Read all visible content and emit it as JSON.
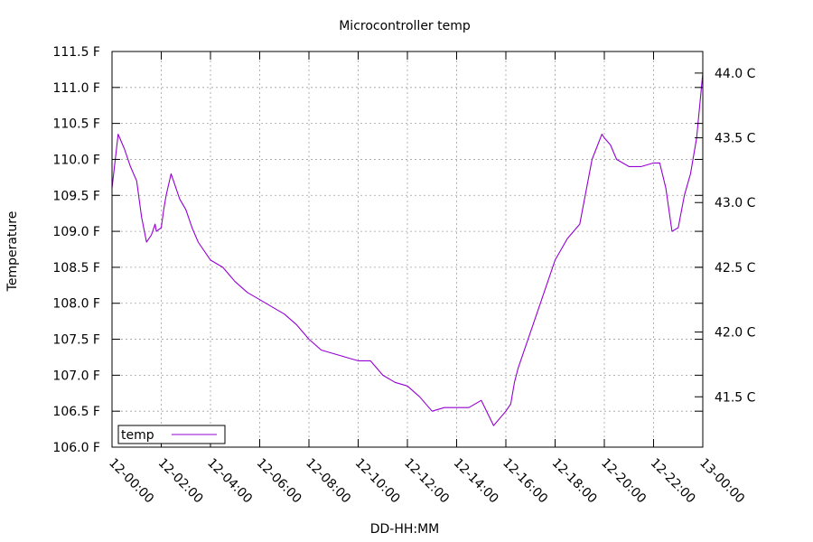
{
  "chart_data": {
    "type": "line",
    "title": "Microcontroller temp",
    "xlabel": "DD-HH:MM",
    "ylabel": "Temperature",
    "x_ticks": [
      "12-00:00",
      "12-02:00",
      "12-04:00",
      "12-06:00",
      "12-08:00",
      "12-10:00",
      "12-12:00",
      "12-14:00",
      "12-16:00",
      "12-18:00",
      "12-20:00",
      "12-22:00",
      "13-00:00"
    ],
    "xlim": [
      "12-00:00",
      "13-00:00"
    ],
    "ylim": [
      106.0,
      111.5
    ],
    "y_ticks": [
      "106.0 F",
      "106.5 F",
      "107.0 F",
      "107.5 F",
      "108.0 F",
      "108.5 F",
      "109.0 F",
      "109.5 F",
      "110.0 F",
      "110.5 F",
      "111.0 F",
      "111.5 F"
    ],
    "y2_ticks": [
      "41.5 C",
      "42.0 C",
      "42.5 C",
      "43.0 C",
      "43.5 C",
      "44.0 C"
    ],
    "y2_values": [
      41.5,
      42.0,
      42.5,
      43.0,
      43.5,
      44.0
    ],
    "grid": true,
    "legend_position": "bottom-left",
    "series": [
      {
        "name": "temp",
        "color": "#9400d3",
        "x_hours": [
          0,
          0.1,
          0.25,
          0.5,
          0.75,
          1.0,
          1.2,
          1.4,
          1.5,
          1.6,
          1.75,
          1.8,
          2.0,
          2.1,
          2.2,
          2.4,
          2.5,
          2.75,
          3.0,
          3.25,
          3.5,
          4.0,
          4.5,
          5.0,
          5.5,
          6.0,
          6.5,
          7.0,
          7.5,
          8.0,
          8.5,
          9.0,
          9.5,
          10.0,
          10.25,
          10.5,
          11.0,
          11.5,
          12.0,
          12.5,
          13.0,
          13.5,
          14.0,
          14.5,
          15.0,
          15.5,
          16.0,
          16.2,
          16.35,
          16.5,
          17.0,
          17.5,
          18.0,
          18.5,
          19.0,
          19.5,
          19.9,
          20.0,
          20.25,
          20.5,
          21.0,
          21.5,
          22.0,
          22.25,
          22.5,
          22.75,
          23.0,
          23.25,
          23.5,
          23.75,
          24.0
        ],
        "values": [
          109.6,
          109.9,
          110.35,
          110.15,
          109.9,
          109.7,
          109.2,
          108.85,
          108.9,
          108.95,
          109.1,
          109.0,
          109.05,
          109.3,
          109.5,
          109.8,
          109.7,
          109.45,
          109.3,
          109.05,
          108.85,
          108.6,
          108.5,
          108.3,
          108.15,
          108.05,
          107.95,
          107.85,
          107.7,
          107.5,
          107.35,
          107.3,
          107.25,
          107.2,
          107.2,
          107.2,
          107.0,
          106.9,
          106.85,
          106.7,
          106.5,
          106.55,
          106.55,
          106.55,
          106.65,
          106.3,
          106.5,
          106.6,
          106.9,
          107.1,
          107.6,
          108.1,
          108.6,
          108.9,
          109.1,
          110.0,
          110.35,
          110.3,
          110.2,
          110.0,
          109.9,
          109.9,
          109.95,
          109.95,
          109.6,
          109.0,
          109.05,
          109.5,
          109.8,
          110.3,
          111.2
        ]
      }
    ]
  }
}
